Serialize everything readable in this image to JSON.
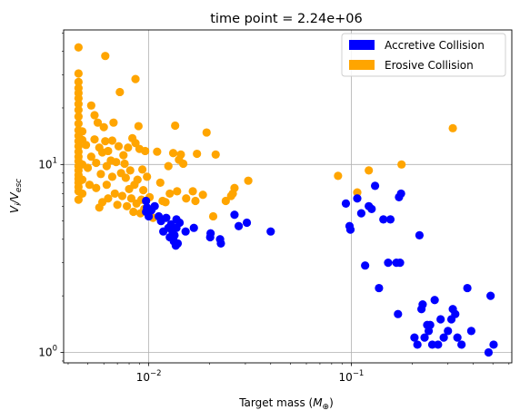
{
  "chart_data": {
    "type": "scatter",
    "title": "time point = 2.24e+06",
    "xlabel_main": "Target mass (",
    "xlabel_sym": "M",
    "xlabel_sub": "⊕",
    "xlabel_end": ")",
    "ylabel_main": "V",
    "ylabel_sub1": "i",
    "ylabel_mid": "/V",
    "ylabel_sub2": "esc",
    "x_scale": "log",
    "y_scale": "log",
    "xlim": [
      0.0038,
      0.62
    ],
    "ylim": [
      0.88,
      52
    ],
    "grid": true,
    "legend_position": "top-right",
    "x_ticks": [
      {
        "value": 0.01,
        "base": "10",
        "exp": "−2"
      },
      {
        "value": 0.1,
        "base": "10",
        "exp": "−1"
      }
    ],
    "y_ticks": [
      {
        "value": 1,
        "base": "10",
        "exp": "0"
      },
      {
        "value": 10,
        "base": "10",
        "exp": "1"
      }
    ],
    "series": [
      {
        "name": "Accretive Collision",
        "color": "#0000ff",
        "points": [
          [
            0.0097,
            6.4
          ],
          [
            0.0097,
            5.6
          ],
          [
            0.0098,
            5.9
          ],
          [
            0.01,
            5.3
          ],
          [
            0.0103,
            5.7
          ],
          [
            0.0107,
            6.0
          ],
          [
            0.0112,
            5.3
          ],
          [
            0.0115,
            5.0
          ],
          [
            0.0118,
            4.4
          ],
          [
            0.0122,
            5.2
          ],
          [
            0.0125,
            4.6
          ],
          [
            0.0127,
            4.1
          ],
          [
            0.0129,
            4.8
          ],
          [
            0.0131,
            4.4
          ],
          [
            0.0133,
            3.9
          ],
          [
            0.0134,
            4.2
          ],
          [
            0.0136,
            3.7
          ],
          [
            0.0137,
            4.6
          ],
          [
            0.0139,
            3.8
          ],
          [
            0.0137,
            5.1
          ],
          [
            0.0142,
            4.9
          ],
          [
            0.0152,
            4.4
          ],
          [
            0.0167,
            4.6
          ],
          [
            0.0201,
            4.1
          ],
          [
            0.0202,
            4.3
          ],
          [
            0.0225,
            4.0
          ],
          [
            0.0227,
            3.8
          ],
          [
            0.0265,
            5.4
          ],
          [
            0.0278,
            4.7
          ],
          [
            0.0305,
            4.9
          ],
          [
            0.04,
            4.4
          ],
          [
            0.094,
            6.2
          ],
          [
            0.098,
            4.7
          ],
          [
            0.099,
            4.5
          ],
          [
            0.107,
            6.6
          ],
          [
            0.112,
            5.5
          ],
          [
            0.117,
            2.9
          ],
          [
            0.122,
            6.0
          ],
          [
            0.126,
            5.8
          ],
          [
            0.131,
            7.7
          ],
          [
            0.137,
            2.2
          ],
          [
            0.144,
            5.1
          ],
          [
            0.152,
            3.0
          ],
          [
            0.156,
            5.1
          ],
          [
            0.167,
            3.0
          ],
          [
            0.17,
            1.6
          ],
          [
            0.172,
            6.7
          ],
          [
            0.174,
            3.0
          ],
          [
            0.176,
            7.0
          ],
          [
            0.205,
            1.2
          ],
          [
            0.212,
            1.1
          ],
          [
            0.217,
            4.2
          ],
          [
            0.222,
            1.7
          ],
          [
            0.225,
            1.8
          ],
          [
            0.23,
            1.2
          ],
          [
            0.237,
            1.4
          ],
          [
            0.241,
            1.3
          ],
          [
            0.245,
            1.4
          ],
          [
            0.251,
            1.1
          ],
          [
            0.258,
            1.9
          ],
          [
            0.268,
            1.1
          ],
          [
            0.276,
            1.5
          ],
          [
            0.286,
            1.2
          ],
          [
            0.3,
            1.3
          ],
          [
            0.312,
            1.5
          ],
          [
            0.317,
            1.7
          ],
          [
            0.326,
            1.6
          ],
          [
            0.334,
            1.2
          ],
          [
            0.35,
            1.1
          ],
          [
            0.374,
            2.2
          ],
          [
            0.391,
            1.3
          ],
          [
            0.476,
            1.0
          ],
          [
            0.487,
            2.0
          ],
          [
            0.504,
            1.1
          ]
        ]
      },
      {
        "name": "Erosive Collision",
        "color": "#ffa500",
        "points": [
          [
            0.0045,
            42.0
          ],
          [
            0.0045,
            30.5
          ],
          [
            0.0045,
            27.5
          ],
          [
            0.0045,
            25.5
          ],
          [
            0.0045,
            24.0
          ],
          [
            0.0045,
            22.5
          ],
          [
            0.0045,
            21.0
          ],
          [
            0.0045,
            19.5
          ],
          [
            0.0045,
            18.0
          ],
          [
            0.0045,
            16.5
          ],
          [
            0.0045,
            15.2
          ],
          [
            0.0045,
            14.2
          ],
          [
            0.0045,
            13.3
          ],
          [
            0.0045,
            12.5
          ],
          [
            0.0045,
            11.7
          ],
          [
            0.0045,
            11.0
          ],
          [
            0.0045,
            10.4
          ],
          [
            0.0045,
            9.8
          ],
          [
            0.0045,
            9.3
          ],
          [
            0.0045,
            8.8
          ],
          [
            0.0045,
            8.4
          ],
          [
            0.0045,
            8.0
          ],
          [
            0.0045,
            7.6
          ],
          [
            0.0045,
            7.2
          ],
          [
            0.0045,
            6.5
          ],
          [
            0.0047,
            15.0
          ],
          [
            0.0047,
            13.5
          ],
          [
            0.0047,
            10.0
          ],
          [
            0.0047,
            8.3
          ],
          [
            0.0047,
            7.0
          ],
          [
            0.0049,
            12.7
          ],
          [
            0.005,
            9.6
          ],
          [
            0.0051,
            7.8
          ],
          [
            0.0052,
            20.6
          ],
          [
            0.0052,
            11.0
          ],
          [
            0.0054,
            18.3
          ],
          [
            0.0054,
            13.6
          ],
          [
            0.0055,
            10.2
          ],
          [
            0.0055,
            7.5
          ],
          [
            0.0056,
            16.7
          ],
          [
            0.0057,
            12.3
          ],
          [
            0.0057,
            5.9
          ],
          [
            0.0058,
            8.9
          ],
          [
            0.0059,
            11.6
          ],
          [
            0.0059,
            6.3
          ],
          [
            0.006,
            15.8
          ],
          [
            0.0061,
            37.8
          ],
          [
            0.0061,
            13.3
          ],
          [
            0.0062,
            9.8
          ],
          [
            0.0062,
            7.8
          ],
          [
            0.0063,
            11.8
          ],
          [
            0.0063,
            6.6
          ],
          [
            0.0065,
            10.5
          ],
          [
            0.0066,
            13.4
          ],
          [
            0.0066,
            8.6
          ],
          [
            0.0067,
            16.7
          ],
          [
            0.0068,
            7.0
          ],
          [
            0.0069,
            10.3
          ],
          [
            0.007,
            6.1
          ],
          [
            0.0071,
            12.5
          ],
          [
            0.0072,
            24.3
          ],
          [
            0.0073,
            9.0
          ],
          [
            0.0074,
            6.8
          ],
          [
            0.0075,
            11.2
          ],
          [
            0.0076,
            10.1
          ],
          [
            0.0077,
            8.5
          ],
          [
            0.0078,
            6.0
          ],
          [
            0.0079,
            12.3
          ],
          [
            0.008,
            7.4
          ],
          [
            0.0081,
            9.3
          ],
          [
            0.0082,
            6.6
          ],
          [
            0.0083,
            13.8
          ],
          [
            0.0084,
            5.6
          ],
          [
            0.0085,
            7.8
          ],
          [
            0.0086,
            28.5
          ],
          [
            0.0086,
            13.0
          ],
          [
            0.0087,
            6.2
          ],
          [
            0.0088,
            8.3
          ],
          [
            0.0089,
            16.0
          ],
          [
            0.009,
            12.1
          ],
          [
            0.0091,
            5.5
          ],
          [
            0.0092,
            6.5
          ],
          [
            0.0093,
            9.4
          ],
          [
            0.0094,
            7.3
          ],
          [
            0.0095,
            5.8
          ],
          [
            0.0096,
            11.8
          ],
          [
            0.0098,
            8.6
          ],
          [
            0.0101,
            6.7
          ],
          [
            0.0105,
            5.2
          ],
          [
            0.011,
            11.7
          ],
          [
            0.0114,
            8.0
          ],
          [
            0.0117,
            6.4
          ],
          [
            0.0121,
            6.3
          ],
          [
            0.0125,
            9.8
          ],
          [
            0.0127,
            7.0
          ],
          [
            0.0132,
            11.5
          ],
          [
            0.0135,
            16.1
          ],
          [
            0.0138,
            7.2
          ],
          [
            0.0141,
            10.6
          ],
          [
            0.0144,
            11.3
          ],
          [
            0.0148,
            10.1
          ],
          [
            0.0153,
            6.6
          ],
          [
            0.0165,
            7.2
          ],
          [
            0.017,
            6.4
          ],
          [
            0.0173,
            11.4
          ],
          [
            0.0185,
            6.9
          ],
          [
            0.0193,
            14.8
          ],
          [
            0.0208,
            5.3
          ],
          [
            0.0214,
            11.3
          ],
          [
            0.024,
            6.4
          ],
          [
            0.0255,
            6.8
          ],
          [
            0.026,
            7.0
          ],
          [
            0.0265,
            7.5
          ],
          [
            0.031,
            8.2
          ],
          [
            0.086,
            8.7
          ],
          [
            0.107,
            7.1
          ],
          [
            0.122,
            9.3
          ],
          [
            0.177,
            10.0
          ],
          [
            0.317,
            15.6
          ]
        ]
      }
    ]
  }
}
